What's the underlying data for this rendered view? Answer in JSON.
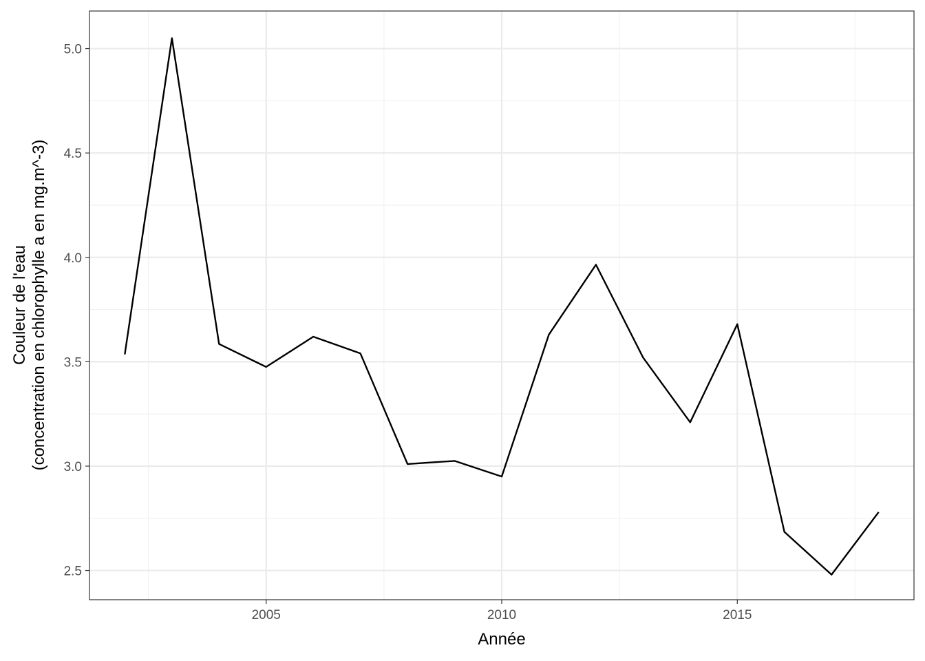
{
  "chart_data": {
    "type": "line",
    "title": "",
    "xlabel": "Année",
    "ylabel": [
      "Couleur de l'eau",
      "(concentration en chlorophylle a en mg.m^-3)"
    ],
    "xlim": [
      2001.25,
      2018.75
    ],
    "ylim": [
      2.36,
      5.18
    ],
    "xticks": [
      2005,
      2010,
      2015
    ],
    "xtick_labels": [
      "2005",
      "2010",
      "2015"
    ],
    "yticks": [
      2.5,
      3.0,
      3.5,
      4.0,
      4.5,
      5.0
    ],
    "ytick_labels": [
      "2.5",
      "3.0",
      "3.5",
      "4.0",
      "4.5",
      "5.0"
    ],
    "grid": true,
    "legend": "none",
    "line_color": "#000000",
    "series": [
      {
        "x": [
          2002,
          2003,
          2004,
          2005,
          2006,
          2007,
          2008,
          2009,
          2010,
          2011,
          2012,
          2013,
          2014,
          2015,
          2016,
          2017,
          2018
        ],
        "values": [
          3.535,
          5.05,
          3.585,
          3.475,
          3.62,
          3.54,
          3.01,
          3.025,
          2.95,
          3.63,
          3.965,
          3.52,
          3.21,
          3.68,
          2.685,
          2.48,
          2.78
        ]
      }
    ]
  }
}
